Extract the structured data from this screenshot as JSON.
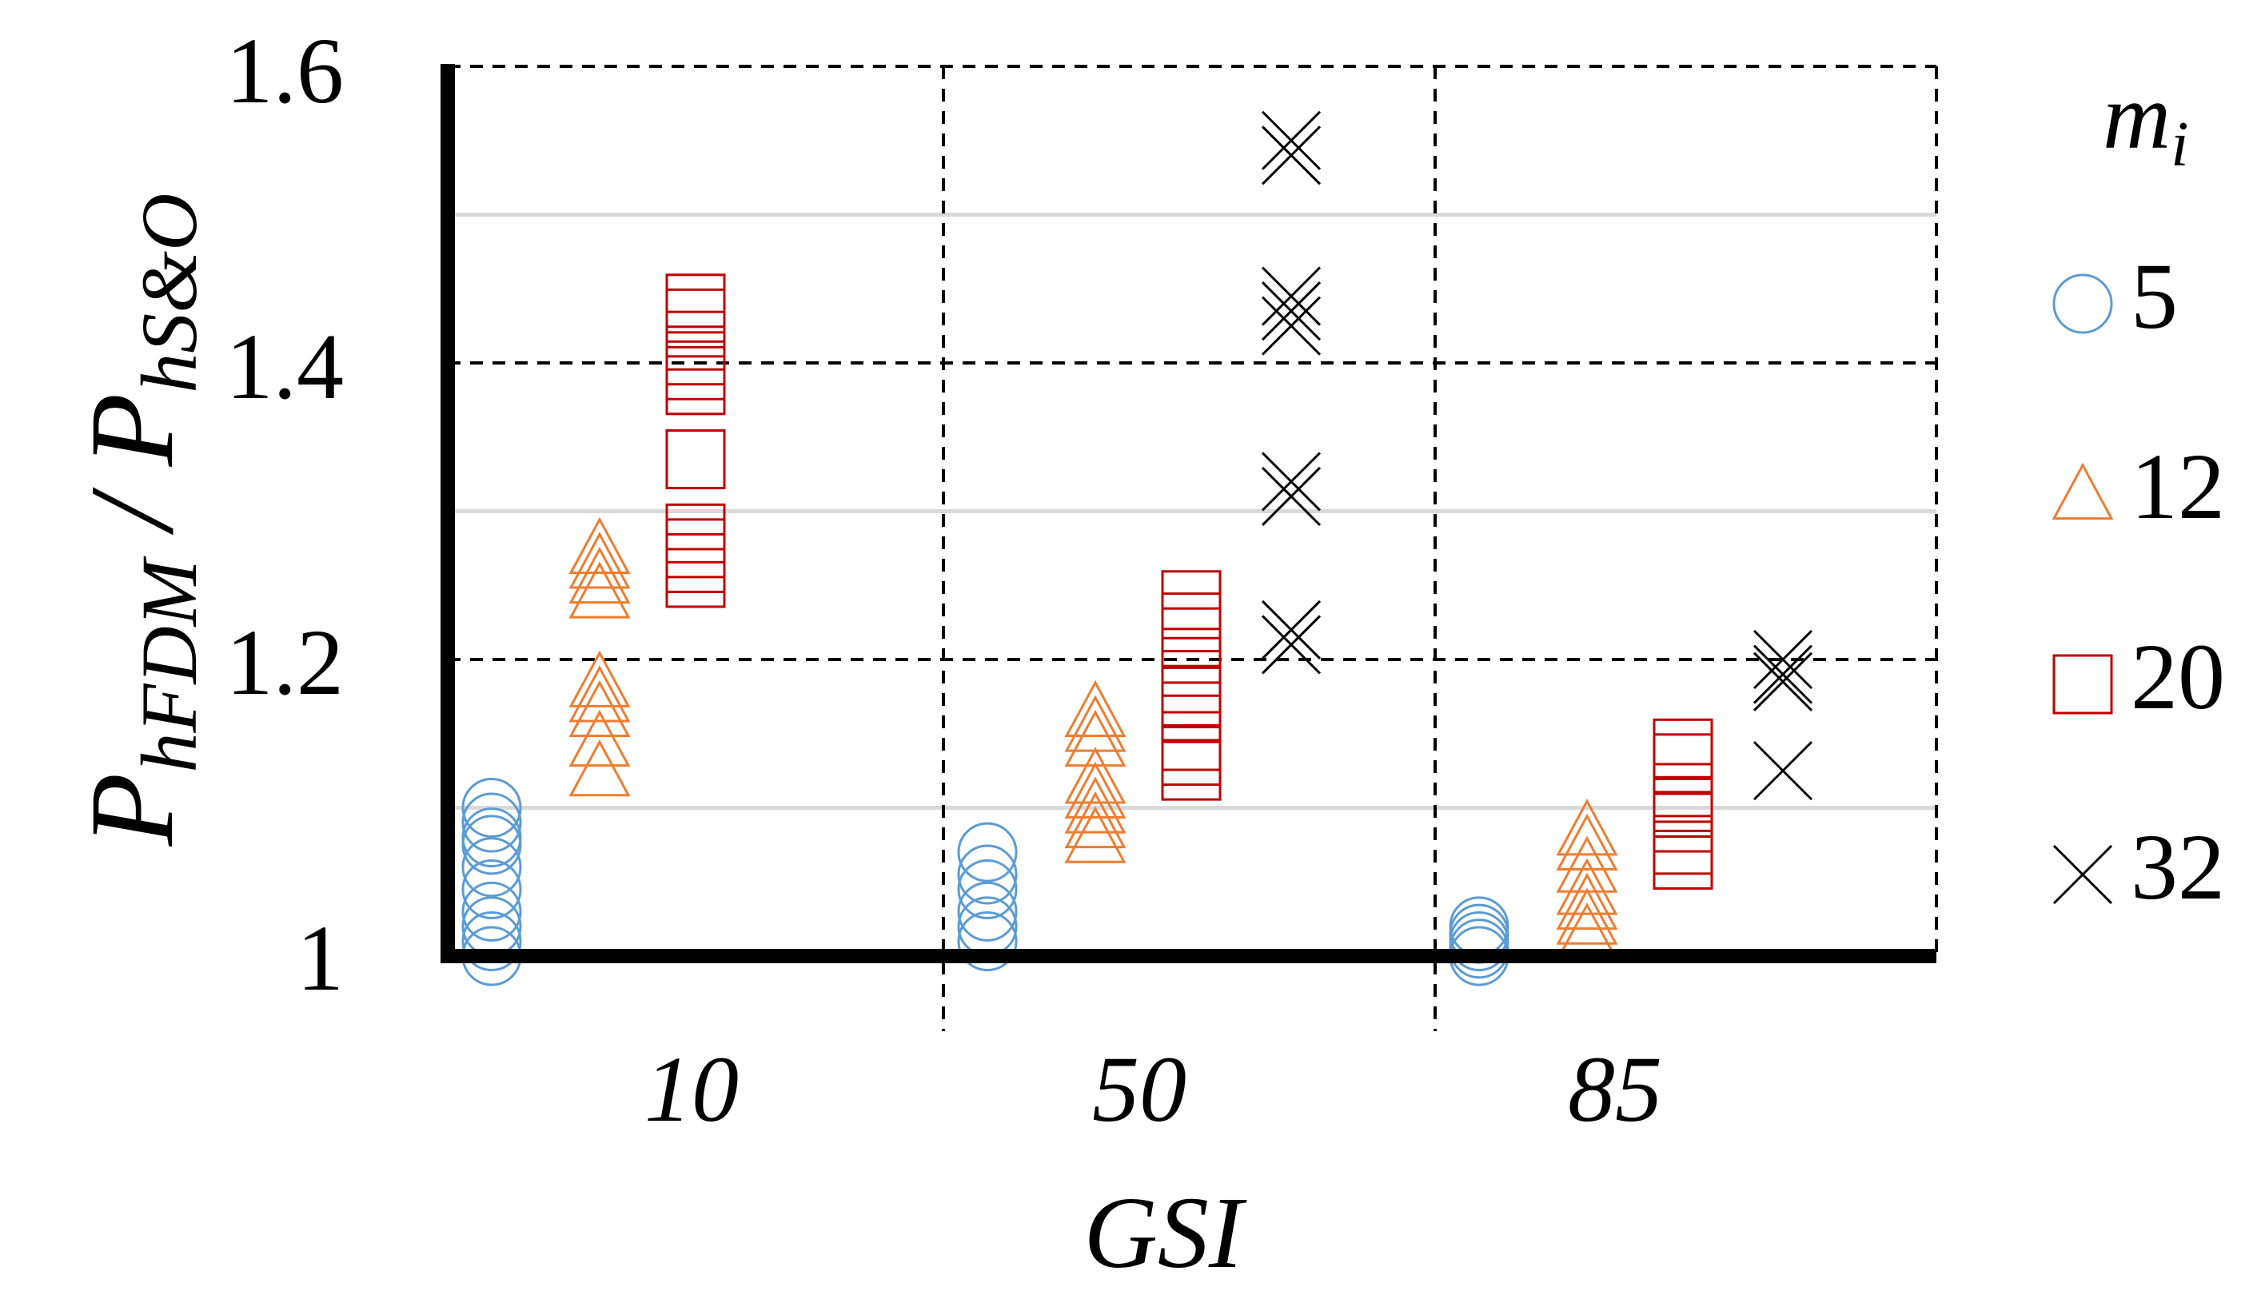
{
  "chart_data": {
    "type": "scatter",
    "title": "",
    "xlabel": "GSI",
    "ylabel": {
      "base": "P",
      "sub1": "hFDM",
      "sep": " / ",
      "base2": "P",
      "sub2": "hS&O"
    },
    "ylim": [
      1,
      1.6
    ],
    "yticks": [
      "1",
      "1.2",
      "1.4",
      "1.6"
    ],
    "categories": [
      "10",
      "50",
      "85"
    ],
    "legend": {
      "title": {
        "base": "m",
        "sub": "i"
      },
      "position": "right",
      "entries": [
        "5",
        "12",
        "20",
        "32"
      ]
    },
    "colors": {
      "5": "#5b9bd5",
      "12": "#ed7d31",
      "20": "#c00000",
      "32": "#000000",
      "grid_major": "#000000",
      "grid_minor": "#d9d9d9"
    },
    "series": [
      {
        "name": "5",
        "marker": "circle",
        "values": [
          [
            1.0,
            1.01,
            1.02,
            1.03,
            1.045,
            1.06,
            1.075,
            1.08,
            1.09,
            1.1
          ],
          [
            1.01,
            1.02,
            1.03,
            1.045,
            1.055,
            1.07
          ],
          [
            1.0,
            1.005,
            1.01,
            1.015,
            1.02
          ]
        ]
      },
      {
        "name": "12",
        "marker": "triangle",
        "values": [
          [
            1.125,
            1.145,
            1.165,
            1.175,
            1.185,
            1.245,
            1.255,
            1.265,
            1.275
          ],
          [
            1.08,
            1.09,
            1.1,
            1.11,
            1.12,
            1.145,
            1.155,
            1.165
          ],
          [
            1.015,
            1.025,
            1.035,
            1.045,
            1.06,
            1.075,
            1.085
          ]
        ]
      },
      {
        "name": "20",
        "marker": "square",
        "values": [
          [
            1.255,
            1.265,
            1.275,
            1.285,
            1.335,
            1.385,
            1.395,
            1.405,
            1.415,
            1.43,
            1.44
          ],
          [
            1.125,
            1.135,
            1.145,
            1.165,
            1.175,
            1.195,
            1.215,
            1.225,
            1.24
          ],
          [
            1.065,
            1.075,
            1.09,
            1.1,
            1.11,
            1.13,
            1.14
          ]
        ]
      },
      {
        "name": "32",
        "marker": "x",
        "values": [
          [],
          [
            1.21,
            1.22,
            1.31,
            1.32,
            1.425,
            1.435,
            1.445,
            1.54,
            1.55
          ],
          [
            1.125,
            1.185,
            1.19,
            1.2
          ]
        ]
      }
    ]
  }
}
